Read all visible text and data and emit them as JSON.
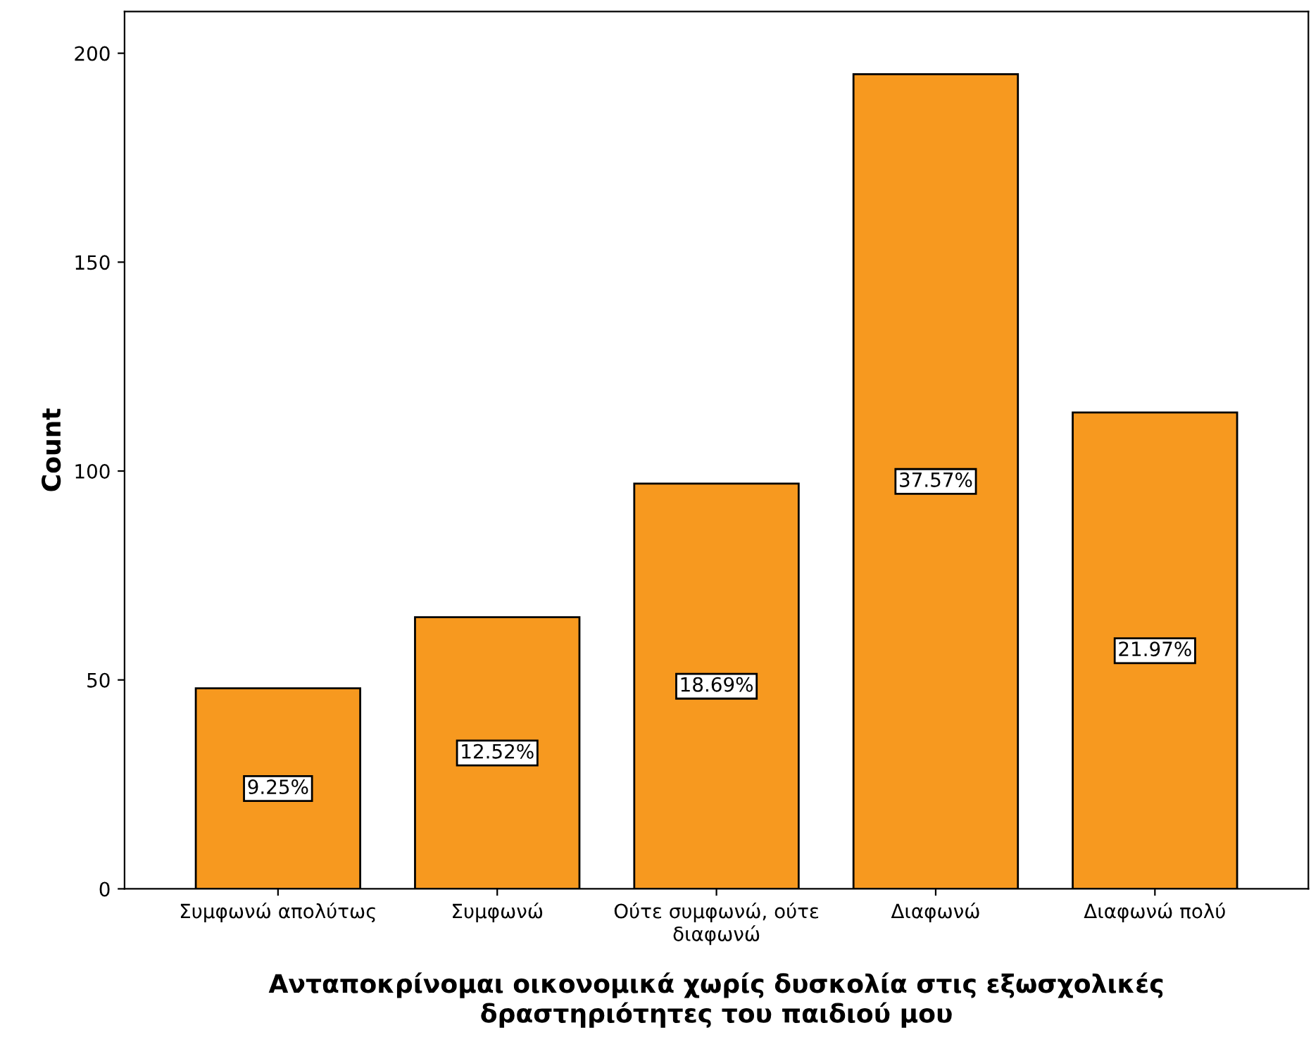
{
  "chart_data": {
    "type": "bar",
    "xlabel": "Ανταποκρίνομαι οικονομικά χωρίς δυσκολία στις εξωσχολικές δραστηριότητες του παιδιού μου",
    "ylabel": "Count",
    "categories": [
      "Συμφωνώ απολύτως",
      "Συμφωνώ",
      "Ούτε συμφωνώ, ούτε διαφωνώ",
      "Διαφωνώ",
      "Διαφωνώ πολύ"
    ],
    "values": [
      48,
      65,
      97,
      195,
      114
    ],
    "annotations": [
      "9.25%",
      "12.52%",
      "18.69%",
      "37.57%",
      "21.97%"
    ],
    "color": "#f7991f",
    "ylim": [
      0,
      210
    ],
    "yticks": [
      0,
      50,
      100,
      150,
      200
    ],
    "grid": false,
    "legend": false
  }
}
